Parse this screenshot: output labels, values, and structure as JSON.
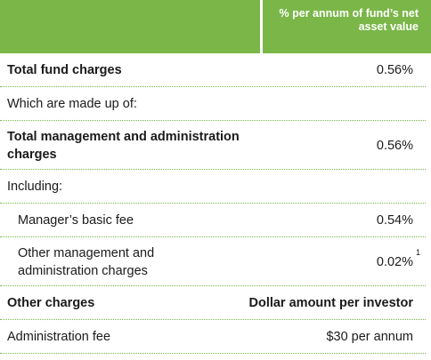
{
  "header": {
    "column_label_line1": "% per annum of fund’s net",
    "column_label_line2": "asset value",
    "accent_color": "#7ab648"
  },
  "rows": [
    {
      "label": "Total fund charges",
      "value": "0.56%"
    },
    {
      "label": "Which are made up of:",
      "value": ""
    },
    {
      "label_line1": "Total management and administration",
      "label_line2": "charges",
      "value": "0.56%"
    },
    {
      "label": "Including:",
      "value": ""
    },
    {
      "label": "Manager’s basic fee",
      "value": "0.54%"
    },
    {
      "label_line1": "Other management and",
      "label_line2": "administration charges",
      "value": "0.02%",
      "footnote": "1"
    },
    {
      "label": "Other charges",
      "value": "Dollar amount per investor"
    },
    {
      "label": "Administration fee",
      "value": "$30 per annum"
    }
  ]
}
